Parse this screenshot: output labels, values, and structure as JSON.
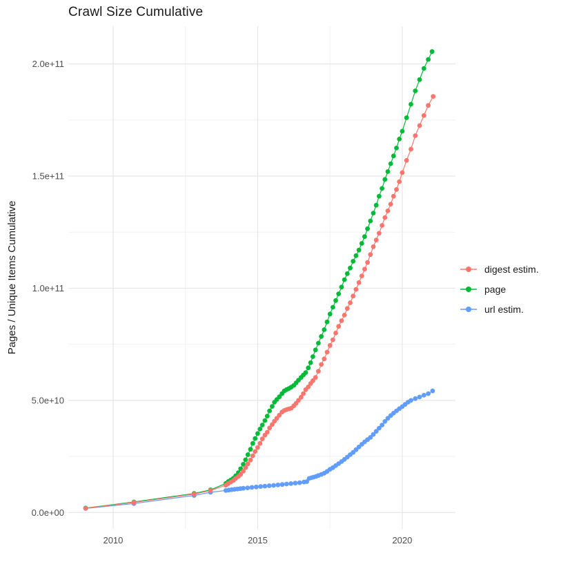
{
  "title": "Crawl Size Cumulative",
  "chart_data": {
    "type": "line",
    "title": "Crawl Size Cumulative",
    "xlabel": "",
    "ylabel": "Pages / Unique Items Cumulative",
    "value_unit": "1e9 (points stored as [year, billions]; y tick labels show scientific notation)",
    "grid": true,
    "legend_position": "right",
    "x_axis": {
      "domain": [
        2008.45,
        2021.84
      ],
      "tick_values": [
        2010,
        2015,
        2020
      ],
      "tick_labels": [
        "2010",
        "2015",
        "2020"
      ],
      "minor_ticks": [
        2012.5,
        2017.5
      ]
    },
    "y_axis": {
      "domain": [
        -7.3,
        216.8
      ],
      "tick_values": [
        0,
        50,
        100,
        150,
        200
      ],
      "tick_labels": [
        "0.0e+00",
        "5.0e+10",
        "1.0e+11",
        "1.5e+11",
        "2.0e+11"
      ],
      "minor_ticks": [
        25,
        75,
        125,
        175
      ]
    },
    "series": [
      {
        "name": "digest estim.",
        "color": "#F8766D",
        "points": [
          [
            2009.05,
            1.9
          ],
          [
            2010.72,
            4.5
          ],
          [
            2012.8,
            8.2
          ],
          [
            2013.37,
            9.8
          ],
          [
            2013.9,
            12.2
          ],
          [
            2013.98,
            12.9
          ],
          [
            2014.07,
            13.6
          ],
          [
            2014.16,
            14.3
          ],
          [
            2014.24,
            15.2
          ],
          [
            2014.33,
            16.1
          ],
          [
            2014.41,
            17.0
          ],
          [
            2014.5,
            18.4
          ],
          [
            2014.58,
            20.0
          ],
          [
            2014.66,
            21.7
          ],
          [
            2014.75,
            23.4
          ],
          [
            2014.83,
            25.3
          ],
          [
            2014.91,
            27.2
          ],
          [
            2015.0,
            29.0
          ],
          [
            2015.08,
            30.8
          ],
          [
            2015.16,
            32.8
          ],
          [
            2015.25,
            34.5
          ],
          [
            2015.33,
            35.8
          ],
          [
            2015.41,
            37.7
          ],
          [
            2015.5,
            39.2
          ],
          [
            2015.58,
            40.7
          ],
          [
            2015.66,
            42.0
          ],
          [
            2015.75,
            43.4
          ],
          [
            2015.84,
            44.8
          ],
          [
            2015.92,
            45.5
          ],
          [
            2016.0,
            45.9
          ],
          [
            2016.08,
            46.2
          ],
          [
            2016.16,
            46.5
          ],
          [
            2016.25,
            47.6
          ],
          [
            2016.33,
            48.7
          ],
          [
            2016.41,
            50.0
          ],
          [
            2016.5,
            51.4
          ],
          [
            2016.58,
            53.0
          ],
          [
            2016.66,
            54.8
          ],
          [
            2016.75,
            56.0
          ],
          [
            2016.83,
            57.5
          ],
          [
            2016.91,
            58.8
          ],
          [
            2017.0,
            60.2
          ],
          [
            2017.1,
            63.0
          ],
          [
            2017.2,
            66.0
          ],
          [
            2017.3,
            68.5
          ],
          [
            2017.4,
            71.5
          ],
          [
            2017.5,
            74.5
          ],
          [
            2017.6,
            77.0
          ],
          [
            2017.7,
            80.0
          ],
          [
            2017.8,
            83.0
          ],
          [
            2017.9,
            85.5
          ],
          [
            2018.0,
            88.0
          ],
          [
            2018.1,
            91.0
          ],
          [
            2018.2,
            93.5
          ],
          [
            2018.3,
            96.5
          ],
          [
            2018.4,
            99.5
          ],
          [
            2018.5,
            102.5
          ],
          [
            2018.6,
            105.5
          ],
          [
            2018.7,
            108.5
          ],
          [
            2018.8,
            111.5
          ],
          [
            2018.9,
            115.0
          ],
          [
            2019.0,
            118.5
          ],
          [
            2019.1,
            121.5
          ],
          [
            2019.2,
            124.5
          ],
          [
            2019.3,
            128.0
          ],
          [
            2019.4,
            131.5
          ],
          [
            2019.5,
            134.5
          ],
          [
            2019.6,
            137.5
          ],
          [
            2019.7,
            141.0
          ],
          [
            2019.8,
            144.0
          ],
          [
            2019.9,
            147.5
          ],
          [
            2020.0,
            151.5
          ],
          [
            2020.15,
            157.0
          ],
          [
            2020.3,
            162.0
          ],
          [
            2020.45,
            168.0
          ],
          [
            2020.6,
            172.5
          ],
          [
            2020.75,
            177.0
          ],
          [
            2020.9,
            181.5
          ],
          [
            2021.07,
            185.5
          ]
        ]
      },
      {
        "name": "page",
        "color": "#00BA38",
        "points": [
          [
            2009.05,
            2.0
          ],
          [
            2010.72,
            4.7
          ],
          [
            2012.8,
            8.5
          ],
          [
            2013.37,
            10.1
          ],
          [
            2013.9,
            13.0
          ],
          [
            2013.98,
            13.8
          ],
          [
            2014.07,
            14.5
          ],
          [
            2014.16,
            15.3
          ],
          [
            2014.24,
            16.4
          ],
          [
            2014.33,
            17.8
          ],
          [
            2014.41,
            19.5
          ],
          [
            2014.5,
            21.5
          ],
          [
            2014.58,
            23.5
          ],
          [
            2014.66,
            25.8
          ],
          [
            2014.75,
            28.2
          ],
          [
            2014.83,
            30.8
          ],
          [
            2014.91,
            33.0
          ],
          [
            2015.0,
            35.2
          ],
          [
            2015.08,
            37.2
          ],
          [
            2015.16,
            39.0
          ],
          [
            2015.25,
            41.0
          ],
          [
            2015.33,
            43.0
          ],
          [
            2015.41,
            45.3
          ],
          [
            2015.5,
            47.3
          ],
          [
            2015.58,
            49.2
          ],
          [
            2015.66,
            50.4
          ],
          [
            2015.75,
            51.6
          ],
          [
            2015.84,
            53.0
          ],
          [
            2015.92,
            54.2
          ],
          [
            2016.0,
            54.8
          ],
          [
            2016.08,
            55.3
          ],
          [
            2016.16,
            55.9
          ],
          [
            2016.25,
            56.7
          ],
          [
            2016.33,
            57.8
          ],
          [
            2016.41,
            59.0
          ],
          [
            2016.5,
            60.2
          ],
          [
            2016.58,
            61.3
          ],
          [
            2016.66,
            62.4
          ],
          [
            2016.75,
            64.5
          ],
          [
            2016.83,
            66.8
          ],
          [
            2016.91,
            69.5
          ],
          [
            2017.0,
            72.5
          ],
          [
            2017.1,
            75.5
          ],
          [
            2017.2,
            78.5
          ],
          [
            2017.3,
            81.5
          ],
          [
            2017.4,
            85.0
          ],
          [
            2017.5,
            88.5
          ],
          [
            2017.6,
            91.5
          ],
          [
            2017.7,
            94.5
          ],
          [
            2017.8,
            97.5
          ],
          [
            2017.9,
            100.5
          ],
          [
            2018.0,
            103.8
          ],
          [
            2018.1,
            106.5
          ],
          [
            2018.2,
            109.0
          ],
          [
            2018.3,
            112.0
          ],
          [
            2018.4,
            114.5
          ],
          [
            2018.5,
            117.0
          ],
          [
            2018.6,
            120.0
          ],
          [
            2018.7,
            123.0
          ],
          [
            2018.8,
            126.5
          ],
          [
            2018.9,
            130.0
          ],
          [
            2019.0,
            133.5
          ],
          [
            2019.1,
            137.0
          ],
          [
            2019.2,
            141.0
          ],
          [
            2019.3,
            144.5
          ],
          [
            2019.4,
            148.5
          ],
          [
            2019.5,
            152.0
          ],
          [
            2019.6,
            155.5
          ],
          [
            2019.7,
            159.0
          ],
          [
            2019.8,
            162.5
          ],
          [
            2019.9,
            166.5
          ],
          [
            2020.0,
            170.0
          ],
          [
            2020.15,
            176.0
          ],
          [
            2020.3,
            182.0
          ],
          [
            2020.45,
            188.0
          ],
          [
            2020.6,
            193.0
          ],
          [
            2020.75,
            198.0
          ],
          [
            2020.9,
            202.0
          ],
          [
            2021.03,
            205.5
          ]
        ]
      },
      {
        "name": "url estim.",
        "color": "#619CFF",
        "points": [
          [
            2009.05,
            1.8
          ],
          [
            2010.72,
            4.0
          ],
          [
            2012.8,
            7.6
          ],
          [
            2013.37,
            9.0
          ],
          [
            2013.9,
            9.8
          ],
          [
            2014.0,
            10.0
          ],
          [
            2014.1,
            10.2
          ],
          [
            2014.2,
            10.35
          ],
          [
            2014.3,
            10.5
          ],
          [
            2014.4,
            10.65
          ],
          [
            2014.5,
            10.8
          ],
          [
            2014.65,
            11.0
          ],
          [
            2014.8,
            11.2
          ],
          [
            2014.95,
            11.4
          ],
          [
            2015.1,
            11.6
          ],
          [
            2015.25,
            11.75
          ],
          [
            2015.4,
            11.95
          ],
          [
            2015.55,
            12.1
          ],
          [
            2015.7,
            12.3
          ],
          [
            2015.85,
            12.5
          ],
          [
            2016.0,
            12.7
          ],
          [
            2016.15,
            12.9
          ],
          [
            2016.3,
            13.1
          ],
          [
            2016.45,
            13.3
          ],
          [
            2016.6,
            13.6
          ],
          [
            2016.7,
            13.8
          ],
          [
            2016.78,
            15.2
          ],
          [
            2016.86,
            15.5
          ],
          [
            2016.94,
            15.8
          ],
          [
            2017.02,
            16.1
          ],
          [
            2017.1,
            16.5
          ],
          [
            2017.2,
            17.0
          ],
          [
            2017.3,
            17.5
          ],
          [
            2017.4,
            18.3
          ],
          [
            2017.5,
            19.3
          ],
          [
            2017.6,
            20.0
          ],
          [
            2017.7,
            20.9
          ],
          [
            2017.8,
            21.8
          ],
          [
            2017.9,
            22.7
          ],
          [
            2018.0,
            23.7
          ],
          [
            2018.1,
            24.7
          ],
          [
            2018.2,
            25.8
          ],
          [
            2018.3,
            26.8
          ],
          [
            2018.4,
            28.0
          ],
          [
            2018.5,
            29.2
          ],
          [
            2018.6,
            30.4
          ],
          [
            2018.7,
            31.5
          ],
          [
            2018.8,
            32.5
          ],
          [
            2018.9,
            33.5
          ],
          [
            2019.0,
            34.8
          ],
          [
            2019.1,
            36.2
          ],
          [
            2019.2,
            37.6
          ],
          [
            2019.3,
            39.0
          ],
          [
            2019.4,
            40.6
          ],
          [
            2019.5,
            42.0
          ],
          [
            2019.6,
            43.2
          ],
          [
            2019.7,
            44.3
          ],
          [
            2019.8,
            45.3
          ],
          [
            2019.9,
            46.3
          ],
          [
            2020.0,
            47.2
          ],
          [
            2020.1,
            48.2
          ],
          [
            2020.2,
            49.2
          ],
          [
            2020.3,
            50.0
          ],
          [
            2020.45,
            50.8
          ],
          [
            2020.6,
            51.5
          ],
          [
            2020.75,
            52.3
          ],
          [
            2020.9,
            53.0
          ],
          [
            2021.05,
            54.2
          ]
        ]
      }
    ],
    "colors": {
      "major_grid": "#e6e6e6",
      "minor_grid": "#f2f2f2",
      "axis_text": "#4d4d4d",
      "title_text": "#1a1a1a"
    }
  }
}
